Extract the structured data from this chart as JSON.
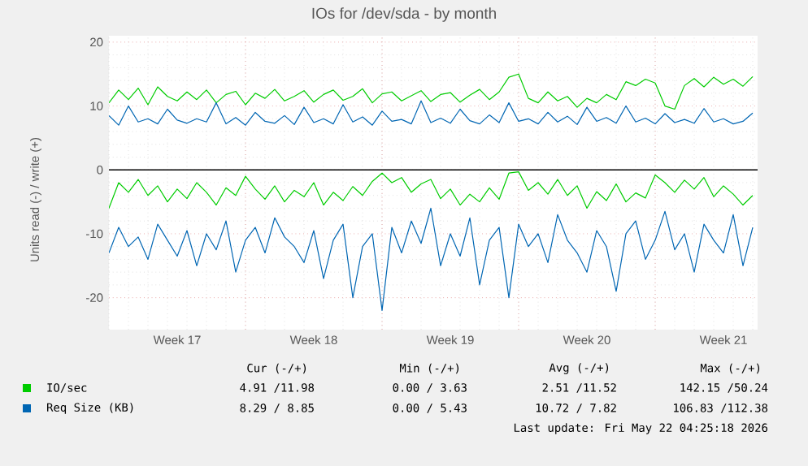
{
  "chart_data": {
    "type": "line",
    "title": "IOs for /dev/sda - by month",
    "ylabel": "Units read (-) / write (+)",
    "categories": [
      null,
      null,
      null,
      null,
      null,
      null,
      null,
      "Week 17",
      null,
      null,
      null,
      null,
      null,
      null,
      null,
      null,
      null,
      null,
      null,
      null,
      null,
      "Week 18",
      null,
      null,
      null,
      null,
      null,
      null,
      null,
      null,
      null,
      null,
      null,
      null,
      null,
      "Week 19",
      null,
      null,
      null,
      null,
      null,
      null,
      null,
      null,
      null,
      null,
      null,
      null,
      null,
      "Week 20",
      null,
      null,
      null,
      null,
      null,
      null,
      null,
      null,
      null,
      null,
      null,
      null,
      null,
      "Week 21",
      null,
      null,
      null
    ],
    "ylim": [
      -25,
      21
    ],
    "yticks": [
      -20,
      -10,
      0,
      10,
      20
    ],
    "grid": true,
    "legend": "bottom",
    "series": [
      {
        "name": "IO/sec",
        "color": "#00cc00",
        "values": [
          10.5,
          12.5,
          11,
          12.8,
          10.2,
          13,
          11.5,
          10.8,
          12.2,
          11,
          12.5,
          10.5,
          11.8,
          12.3,
          10.2,
          12,
          11.2,
          12.6,
          10.8,
          11.5,
          12.4,
          10.6,
          11.8,
          12.5,
          10.9,
          11.5,
          12.7,
          10.5,
          11.9,
          12.2,
          10.8,
          11.6,
          12.4,
          10.7,
          11.8,
          12.1,
          10.6,
          11.7,
          12.6,
          11,
          12.2,
          14.5,
          15,
          11.2,
          10.5,
          12.2,
          10.8,
          11.5,
          9.8,
          11.2,
          10.5,
          11.8,
          11,
          13.8,
          13.2,
          14.2,
          13.6,
          10,
          9.5,
          13.2,
          14.3,
          13,
          14.5,
          13.4,
          14.2,
          13.1,
          14.6
        ]
      },
      {
        "color": "#00cc00",
        "values": [
          -6,
          -2,
          -3.5,
          -1.5,
          -4,
          -2.5,
          -5,
          -3,
          -4.5,
          -2,
          -3.5,
          -5.5,
          -2.8,
          -4,
          -1,
          -3,
          -4.6,
          -2.5,
          -5,
          -3.2,
          -4.2,
          -2,
          -5.5,
          -3.5,
          -4.8,
          -2.6,
          -4,
          -1.8,
          -0.5,
          -2,
          -1.2,
          -3.5,
          -2.2,
          -1.5,
          -4.5,
          -3,
          -5.5,
          -3.8,
          -5,
          -2.8,
          -4.6,
          -0.5,
          -0.3,
          -3.2,
          -2,
          -3.8,
          -1.5,
          -4,
          -2.5,
          -6,
          -3.4,
          -4.8,
          -2.2,
          -5,
          -3.6,
          -4.4,
          -0.8,
          -2,
          -3.5,
          -1.6,
          -3,
          -1.2,
          -4.2,
          -2.5,
          -3.8,
          -5.5,
          -4
        ]
      },
      {
        "name": "Req Size (KB)",
        "color": "#0066b3",
        "values": [
          8.5,
          7,
          10,
          7.5,
          8,
          7.2,
          9.5,
          7.8,
          7.3,
          8,
          7.5,
          10.5,
          7.2,
          8.2,
          7,
          9,
          7.6,
          7.3,
          8.5,
          7.1,
          9.8,
          7.4,
          8,
          7.2,
          10.2,
          7.5,
          8.3,
          7,
          9.2,
          7.6,
          7.9,
          7.2,
          10.8,
          7.4,
          8.1,
          7.3,
          9.5,
          7.7,
          7.2,
          8.6,
          7.4,
          10.5,
          7.6,
          8,
          7.2,
          9,
          7.5,
          8.4,
          7.1,
          9.8,
          7.6,
          8.2,
          7.3,
          10,
          7.5,
          8.1,
          7.2,
          8.8,
          7.4,
          7.9,
          7.3,
          9.6,
          7.5,
          8,
          7.2,
          7.6,
          8.9
        ]
      },
      {
        "color": "#0066b3",
        "values": [
          -13,
          -9,
          -12,
          -10.5,
          -14,
          -8.5,
          -11,
          -13.5,
          -9.5,
          -15,
          -10,
          -12.5,
          -8,
          -16,
          -11,
          -9,
          -13,
          -7.5,
          -10.5,
          -12,
          -14.5,
          -9.5,
          -17,
          -11,
          -8.5,
          -20,
          -12,
          -10,
          -22,
          -9,
          -13,
          -8,
          -11.5,
          -6,
          -15,
          -10,
          -13.5,
          -7.5,
          -18,
          -11,
          -9,
          -20,
          -8.5,
          -12,
          -10,
          -14.5,
          -7,
          -11,
          -13,
          -16,
          -9.5,
          -12,
          -19,
          -10,
          -8,
          -14,
          -11,
          -6.5,
          -12.5,
          -10,
          -16,
          -8.5,
          -11,
          -13,
          -7,
          -15,
          -9
        ]
      }
    ],
    "annotations": [
      "Cur (-/+)",
      "Min (-/+)",
      "Avg (-/+)",
      "Max (-/+)",
      "4.91 /11.98",
      "0.00 / 3.63",
      "2.51 /11.52",
      "142.15 /50.24",
      "8.29 / 8.85",
      "0.00 / 5.43",
      "10.72 / 7.82",
      "106.83 /112.38",
      "Last update: Fri May 22 04:25:18 2026"
    ]
  }
}
